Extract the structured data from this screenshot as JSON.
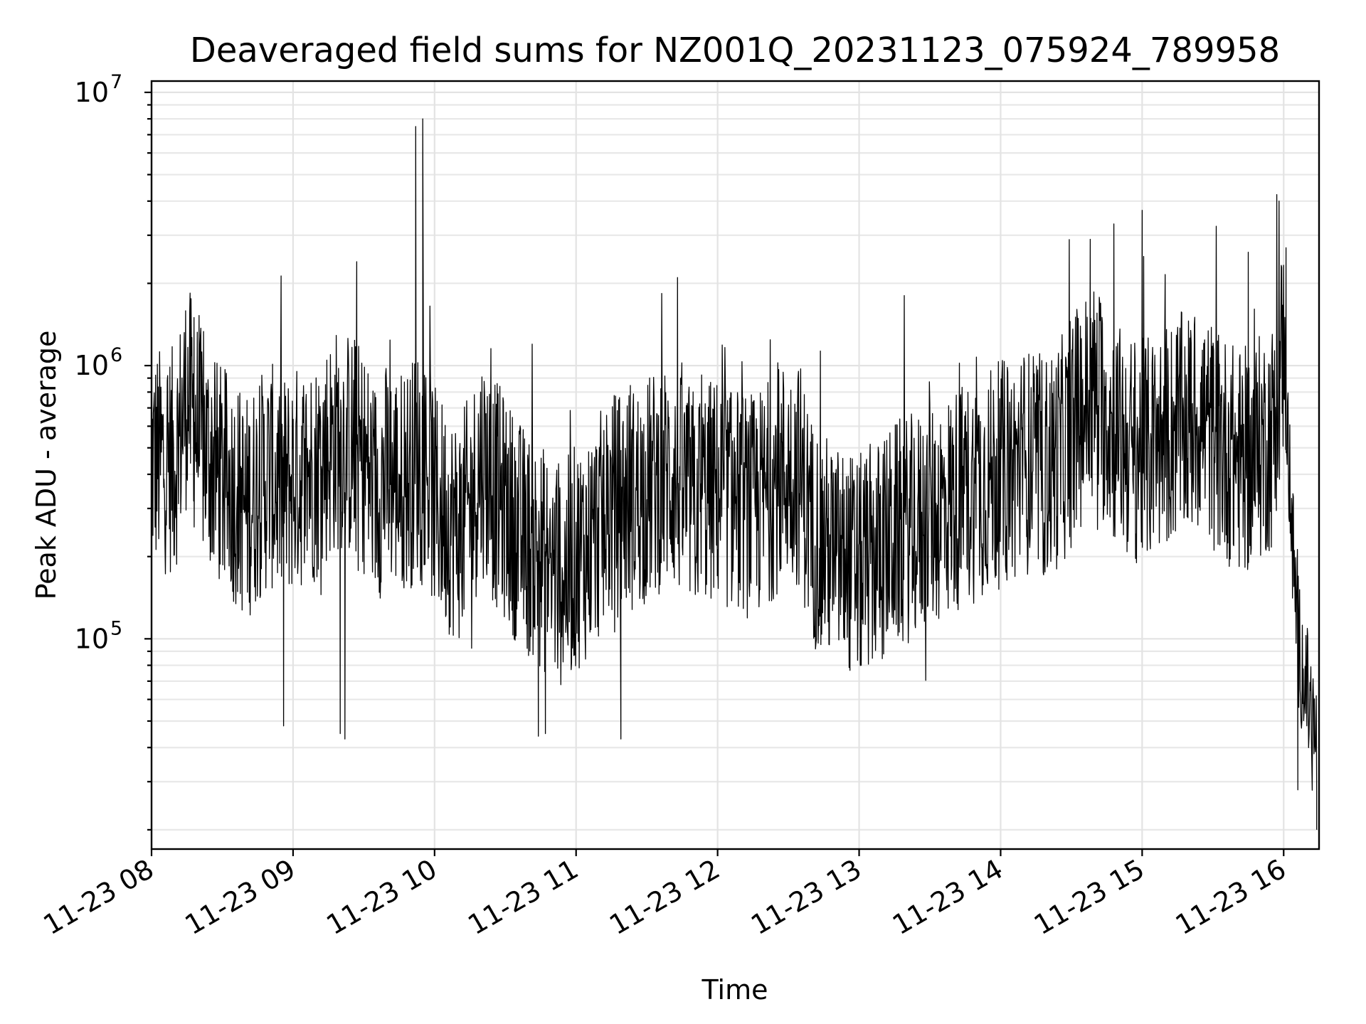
{
  "chart_data": {
    "type": "line",
    "title": "Deaveraged field sums for NZ001Q_20231123_075924_789958",
    "xlabel": "Time",
    "ylabel": "Peak ADU - average",
    "yscale": "log",
    "ylim": [
      17000,
      11000000
    ],
    "xlim": [
      "2023-11-23 08:00",
      "2023-11-23 16:15"
    ],
    "grid": "on",
    "x_ticks": [
      "11-23 08",
      "11-23 09",
      "11-23 10",
      "11-23 11",
      "11-23 12",
      "11-23 13",
      "11-23 14",
      "11-23 15",
      "11-23 16"
    ],
    "y_ticks": [
      {
        "base": "10",
        "exp": "5",
        "value": 100000
      },
      {
        "base": "10",
        "exp": "6",
        "value": 1000000
      },
      {
        "base": "10",
        "exp": "7",
        "value": 10000000
      }
    ],
    "series": [
      {
        "color": "#000000",
        "x": [
          "2023-11-23 08:00",
          "2023-11-23 08:10",
          "2023-11-23 08:15",
          "2023-11-23 08:20",
          "2023-11-23 08:25",
          "2023-11-23 08:30",
          "2023-11-23 08:35",
          "2023-11-23 08:40",
          "2023-11-23 08:45",
          "2023-11-23 08:50",
          "2023-11-23 08:55",
          "2023-11-23 09:00",
          "2023-11-23 09:05",
          "2023-11-23 09:10",
          "2023-11-23 09:15",
          "2023-11-23 09:20",
          "2023-11-23 09:25",
          "2023-11-23 09:30",
          "2023-11-23 09:35",
          "2023-11-23 09:40",
          "2023-11-23 09:45",
          "2023-11-23 09:50",
          "2023-11-23 09:55",
          "2023-11-23 10:00",
          "2023-11-23 10:05",
          "2023-11-23 10:10",
          "2023-11-23 10:15",
          "2023-11-23 10:20",
          "2023-11-23 10:25",
          "2023-11-23 10:30",
          "2023-11-23 10:35",
          "2023-11-23 10:40",
          "2023-11-23 10:45",
          "2023-11-23 10:50",
          "2023-11-23 10:55",
          "2023-11-23 11:00",
          "2023-11-23 11:05",
          "2023-11-23 11:10",
          "2023-11-23 11:15",
          "2023-11-23 11:20",
          "2023-11-23 11:25",
          "2023-11-23 11:30",
          "2023-11-23 11:35",
          "2023-11-23 11:40",
          "2023-11-23 11:45",
          "2023-11-23 11:50",
          "2023-11-23 11:55",
          "2023-11-23 12:00",
          "2023-11-23 12:05",
          "2023-11-23 12:10",
          "2023-11-23 12:15",
          "2023-11-23 12:20",
          "2023-11-23 12:25",
          "2023-11-23 12:30",
          "2023-11-23 12:35",
          "2023-11-23 12:40",
          "2023-11-23 12:45",
          "2023-11-23 12:50",
          "2023-11-23 12:55",
          "2023-11-23 13:00",
          "2023-11-23 13:05",
          "2023-11-23 13:10",
          "2023-11-23 13:15",
          "2023-11-23 13:20",
          "2023-11-23 13:25",
          "2023-11-23 13:30",
          "2023-11-23 13:35",
          "2023-11-23 13:40",
          "2023-11-23 13:45",
          "2023-11-23 13:50",
          "2023-11-23 13:55",
          "2023-11-23 14:00",
          "2023-11-23 14:05",
          "2023-11-23 14:10",
          "2023-11-23 14:15",
          "2023-11-23 14:20",
          "2023-11-23 14:25",
          "2023-11-23 14:30",
          "2023-11-23 14:35",
          "2023-11-23 14:40",
          "2023-11-23 14:45",
          "2023-11-23 14:50",
          "2023-11-23 14:55",
          "2023-11-23 15:00",
          "2023-11-23 15:05",
          "2023-11-23 15:10",
          "2023-11-23 15:15",
          "2023-11-23 15:20",
          "2023-11-23 15:25",
          "2023-11-23 15:30",
          "2023-11-23 15:35",
          "2023-11-23 15:40",
          "2023-11-23 15:45",
          "2023-11-23 15:50",
          "2023-11-23 15:55",
          "2023-11-23 16:00",
          "2023-11-23 16:03",
          "2023-11-23 16:06",
          "2023-11-23 16:09",
          "2023-11-23 16:12",
          "2023-11-23 16:14"
        ],
        "y": [
          450000,
          450000,
          800000,
          550000,
          450000,
          380000,
          350000,
          300000,
          350000,
          400000,
          350000,
          380000,
          400000,
          420000,
          500000,
          550000,
          500000,
          450000,
          350000,
          400000,
          380000,
          400000,
          500000,
          320000,
          280000,
          250000,
          300000,
          450000,
          350000,
          300000,
          250000,
          220000,
          200000,
          180000,
          170000,
          200000,
          220000,
          260000,
          300000,
          320000,
          330000,
          350000,
          380000,
          400000,
          350000,
          320000,
          340000,
          350000,
          330000,
          320000,
          300000,
          330000,
          380000,
          420000,
          400000,
          250000,
          220000,
          200000,
          190000,
          180000,
          200000,
          210000,
          240000,
          250000,
          260000,
          280000,
          300000,
          320000,
          340000,
          360000,
          380000,
          400000,
          420000,
          450000,
          430000,
          420000,
          480000,
          550000,
          700000,
          800000,
          650000,
          550000,
          500000,
          480000,
          500000,
          550000,
          600000,
          600000,
          650000,
          550000,
          500000,
          450000,
          450000,
          500000,
          550000,
          1200000,
          300000,
          100000,
          70000,
          50000,
          40000
        ],
        "spikes_high": [
          {
            "x": "2023-11-23 08:18",
            "y": 1500000
          },
          {
            "x": "2023-11-23 09:27",
            "y": 2400000
          },
          {
            "x": "2023-11-23 09:52",
            "y": 7500000
          },
          {
            "x": "2023-11-23 09:55",
            "y": 8000000
          },
          {
            "x": "2023-11-23 11:43",
            "y": 2100000
          },
          {
            "x": "2023-11-23 14:38",
            "y": 2900000
          },
          {
            "x": "2023-11-23 14:48",
            "y": 3300000
          },
          {
            "x": "2023-11-23 15:00",
            "y": 3700000
          },
          {
            "x": "2023-11-23 15:45",
            "y": 2600000
          },
          {
            "x": "2023-11-23 16:01",
            "y": 2700000
          }
        ],
        "spikes_low": [
          {
            "x": "2023-11-23 08:56",
            "y": 48000
          },
          {
            "x": "2023-11-23 09:20",
            "y": 45000
          },
          {
            "x": "2023-11-23 09:22",
            "y": 43000
          },
          {
            "x": "2023-11-23 10:44",
            "y": 44000
          },
          {
            "x": "2023-11-23 10:47",
            "y": 45000
          },
          {
            "x": "2023-11-23 11:19",
            "y": 43000
          },
          {
            "x": "2023-11-23 16:06",
            "y": 28000
          },
          {
            "x": "2023-11-23 16:14",
            "y": 20000
          }
        ]
      }
    ]
  }
}
